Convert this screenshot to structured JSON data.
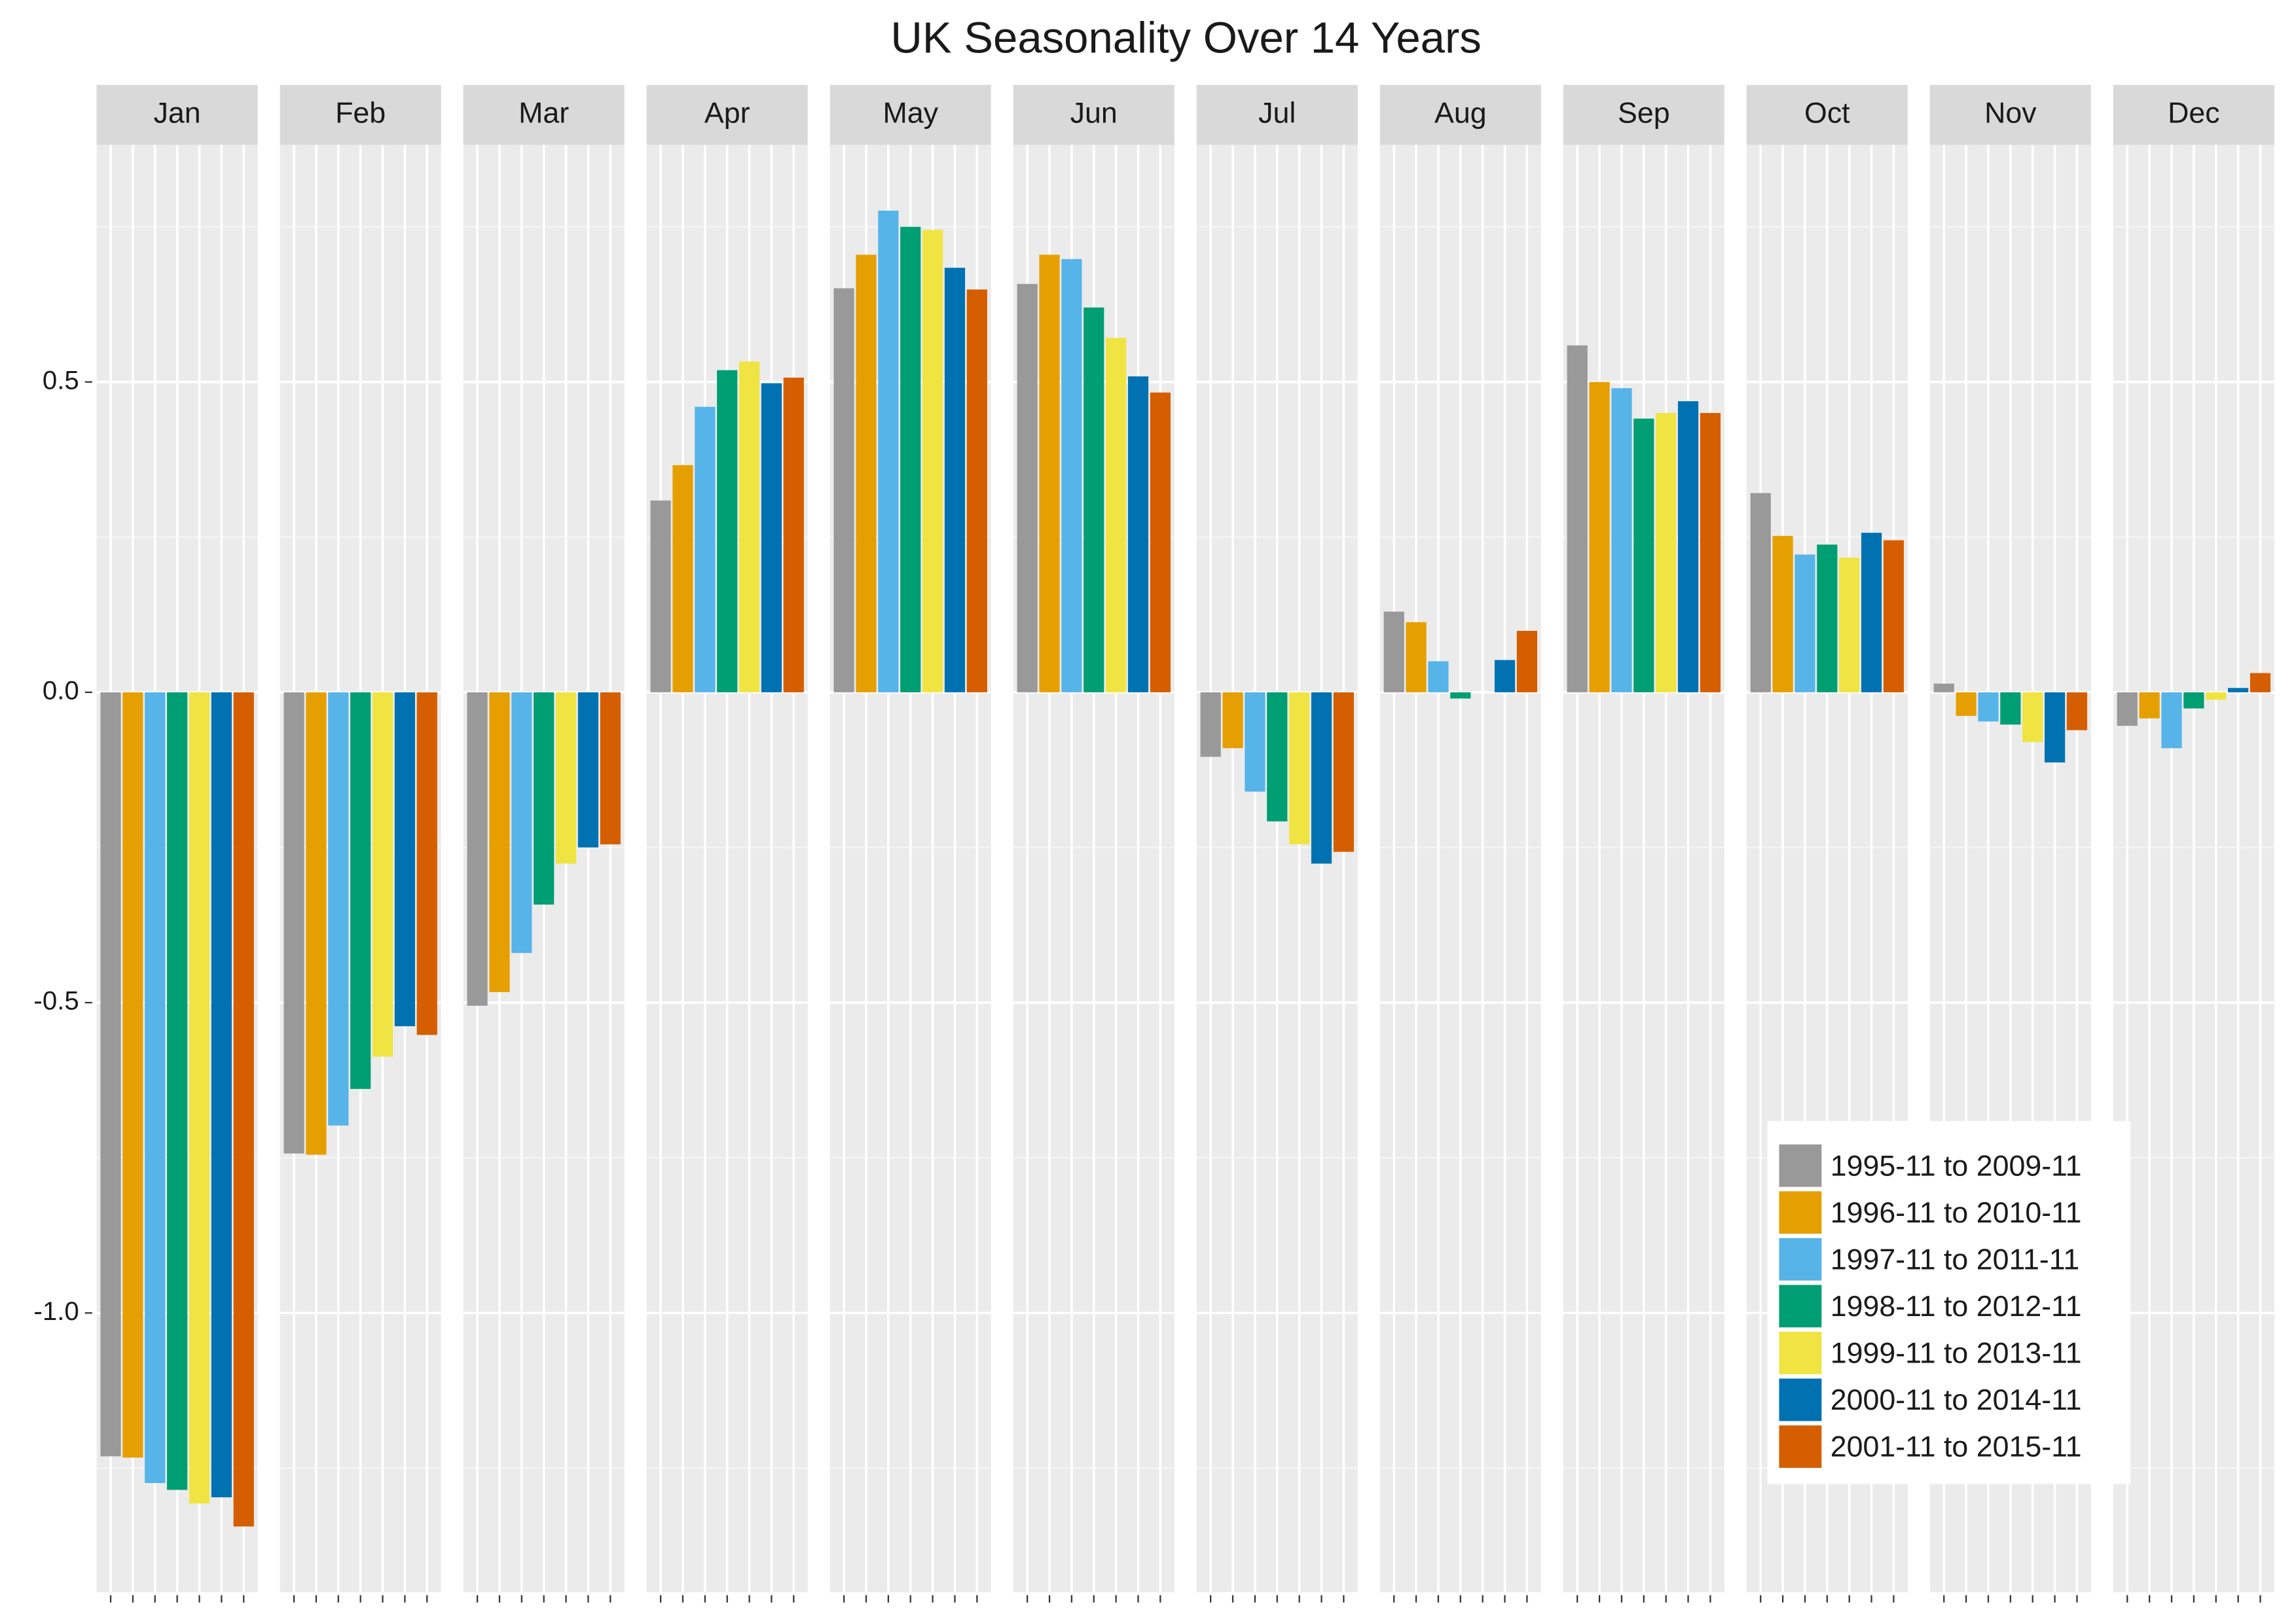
{
  "chart_data": {
    "type": "bar",
    "title": "UK Seasonality Over 14 Years",
    "categories": [
      "Jan",
      "Feb",
      "Mar",
      "Apr",
      "May",
      "Jun",
      "Jul",
      "Aug",
      "Sep",
      "Oct",
      "Nov",
      "Dec"
    ],
    "series": [
      {
        "name": "1995-11 to 2009-11",
        "color": "#999999",
        "values": [
          -1.231,
          -0.743,
          -0.505,
          0.309,
          0.651,
          0.658,
          -0.104,
          0.13,
          0.559,
          0.321,
          0.014,
          -0.054
        ]
      },
      {
        "name": "1996-11 to 2010-11",
        "color": "#E69F00",
        "values": [
          -1.233,
          -0.745,
          -0.483,
          0.366,
          0.705,
          0.705,
          -0.09,
          0.113,
          0.5,
          0.252,
          -0.038,
          -0.042
        ]
      },
      {
        "name": "1997-11 to 2011-11",
        "color": "#56B4E9",
        "values": [
          -1.274,
          -0.698,
          -0.42,
          0.46,
          0.776,
          0.698,
          -0.16,
          0.05,
          0.49,
          0.222,
          -0.047,
          -0.09
        ]
      },
      {
        "name": "1998-11 to 2012-11",
        "color": "#009E73",
        "values": [
          -1.285,
          -0.639,
          -0.342,
          0.519,
          0.75,
          0.62,
          -0.208,
          -0.01,
          0.441,
          0.238,
          -0.052,
          -0.026
        ]
      },
      {
        "name": "1999-11 to 2013-11",
        "color": "#F0E442",
        "values": [
          -1.307,
          -0.587,
          -0.276,
          0.533,
          0.745,
          0.571,
          -0.245,
          0,
          0.45,
          0.217,
          -0.08,
          -0.012
        ]
      },
      {
        "name": "2000-11 to 2014-11",
        "color": "#0072B2",
        "values": [
          -1.297,
          -0.538,
          -0.25,
          0.498,
          0.684,
          0.509,
          -0.276,
          0.052,
          0.469,
          0.257,
          -0.113,
          0.007
        ]
      },
      {
        "name": "2001-11 to 2015-11",
        "color": "#D55E00",
        "values": [
          -1.344,
          -0.552,
          -0.245,
          0.507,
          0.649,
          0.483,
          -0.257,
          0.099,
          0.45,
          0.245,
          -0.061,
          0.031
        ]
      }
    ],
    "ylim": [
      -1.45,
      0.882
    ],
    "yticks": [
      {
        "value": -1,
        "label": "-1.0"
      },
      {
        "value": -0.5,
        "label": "-0.5"
      },
      {
        "value": 0,
        "label": "0.0"
      },
      0.5
    ],
    "grid": true,
    "legend": "bottom-right"
  }
}
